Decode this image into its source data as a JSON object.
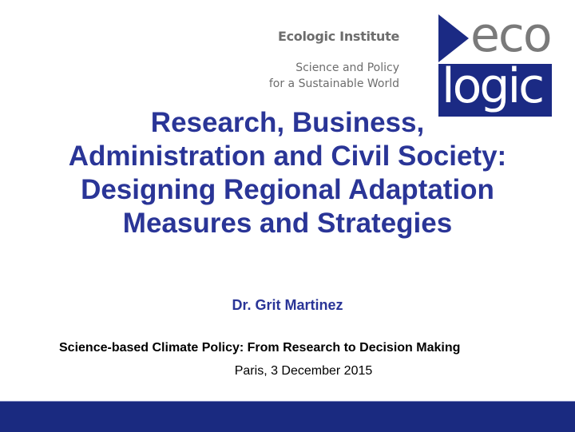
{
  "institute": {
    "name": "Ecologic Institute",
    "tagline_line1": "Science and Policy",
    "tagline_line2": "for a Sustainable World",
    "logo_text_top": "eco",
    "logo_text_bottom": "logic"
  },
  "slide": {
    "title_lines": [
      "Research, Business,",
      "Administration and Civil Society:",
      "Designing Regional Adaptation",
      "Measures and Strategies"
    ],
    "author": "Dr. Grit Martinez",
    "event": "Science-based Climate Policy: From Research to Decision Making",
    "location_date": "Paris, 3 December 2015"
  },
  "colors": {
    "brand_blue": "#1a2a80",
    "title_blue": "#2a3597",
    "logo_gray": "#7a7a7a"
  }
}
